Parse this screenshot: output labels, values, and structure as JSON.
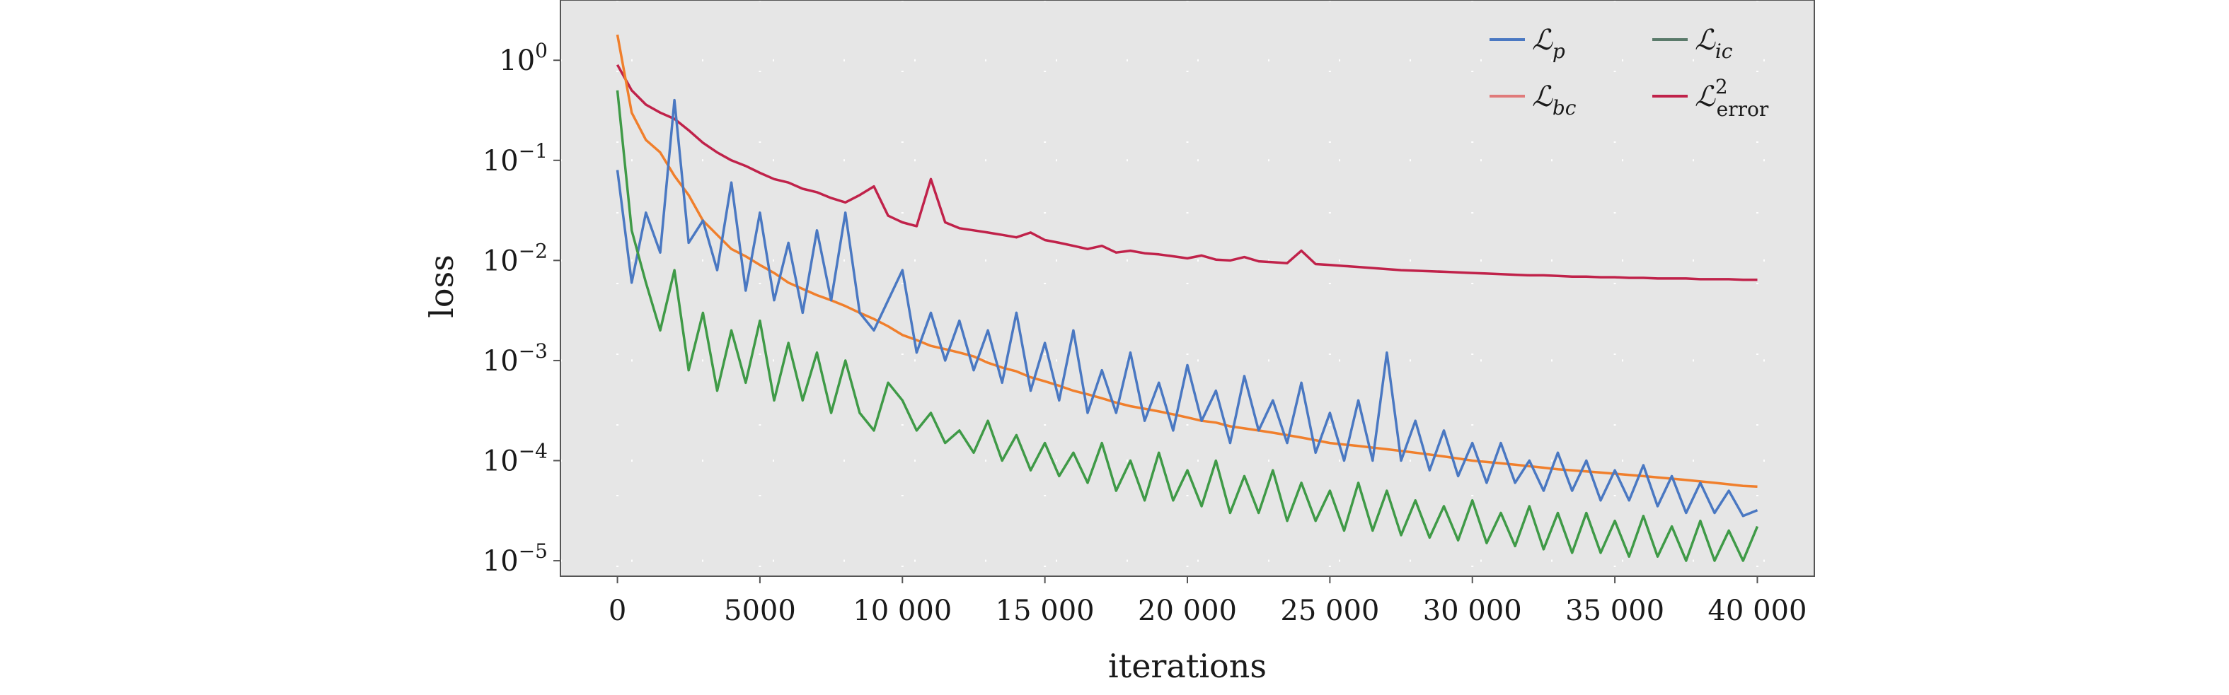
{
  "chart_data": {
    "type": "line",
    "xlabel": "iterations",
    "ylabel": "loss",
    "y_scale": "log",
    "xlim": [
      -2000,
      42000
    ],
    "ylim": [
      7e-06,
      4
    ],
    "x_ticks": [
      0,
      5000,
      10000,
      15000,
      20000,
      25000,
      30000,
      35000,
      40000
    ],
    "x_tick_labels": [
      "0",
      "5000",
      "10 000",
      "15 000",
      "20 000",
      "25 000",
      "30 000",
      "35 000",
      "40 000"
    ],
    "y_ticks": [
      1,
      0.1,
      0.01,
      0.001,
      0.0001,
      1e-05
    ],
    "y_tick_labels": [
      {
        "base": "10",
        "exp": "0"
      },
      {
        "base": "10",
        "exp": "−1"
      },
      {
        "base": "10",
        "exp": "−2"
      },
      {
        "base": "10",
        "exp": "−3"
      },
      {
        "base": "10",
        "exp": "−4"
      },
      {
        "base": "10",
        "exp": "−5"
      }
    ],
    "background": "#e6e6e6",
    "grid": "dotted",
    "legend_position": "top-right",
    "legend": [
      {
        "symbol": "ℒ",
        "sub": "p",
        "sup": "",
        "color": "#4a78c2"
      },
      {
        "symbol": "ℒ",
        "sub": "ic",
        "sup": "",
        "color": "#5a7a6a"
      },
      {
        "symbol": "ℒ",
        "sub": "bc",
        "sup": "",
        "color": "#e07a7a"
      },
      {
        "symbol": "ℒ",
        "sub": "error",
        "sup": "2",
        "color": "#c0224a"
      }
    ],
    "series": [
      {
        "color": "#c0224a",
        "x": [
          0,
          500,
          1000,
          1500,
          2000,
          2500,
          3000,
          3500,
          4000,
          4500,
          5000,
          5500,
          6000,
          6500,
          7000,
          7500,
          8000,
          8500,
          9000,
          9500,
          10000,
          10500,
          11000,
          11500,
          12000,
          12500,
          13000,
          13500,
          14000,
          14500,
          15000,
          15500,
          16000,
          16500,
          17000,
          17500,
          18000,
          18500,
          19000,
          19500,
          20000,
          20500,
          21000,
          21500,
          22000,
          22500,
          23000,
          23500,
          24000,
          24500,
          25000,
          25500,
          26000,
          26500,
          27000,
          27500,
          28000,
          28500,
          29000,
          29500,
          30000,
          30500,
          31000,
          31500,
          32000,
          32500,
          33000,
          33500,
          34000,
          34500,
          35000,
          35500,
          36000,
          36500,
          37000,
          37500,
          38000,
          38500,
          39000,
          39500,
          40000
        ],
        "y": [
          0.9,
          0.5,
          0.36,
          0.3,
          0.26,
          0.2,
          0.15,
          0.12,
          0.1,
          0.088,
          0.075,
          0.065,
          0.06,
          0.052,
          0.048,
          0.042,
          0.038,
          0.045,
          0.055,
          0.028,
          0.024,
          0.022,
          0.065,
          0.024,
          0.021,
          0.02,
          0.019,
          0.018,
          0.017,
          0.019,
          0.016,
          0.015,
          0.014,
          0.013,
          0.014,
          0.012,
          0.0125,
          0.0118,
          0.0115,
          0.011,
          0.0105,
          0.0112,
          0.0102,
          0.01,
          0.0108,
          0.0098,
          0.0096,
          0.0094,
          0.0125,
          0.0092,
          0.009,
          0.0088,
          0.0086,
          0.0084,
          0.0082,
          0.008,
          0.0079,
          0.0078,
          0.0077,
          0.0076,
          0.0075,
          0.0074,
          0.0073,
          0.0072,
          0.0071,
          0.0071,
          0.007,
          0.0069,
          0.0069,
          0.0068,
          0.0068,
          0.0067,
          0.0067,
          0.0066,
          0.0066,
          0.0066,
          0.0065,
          0.0065,
          0.0065,
          0.0064,
          0.0064
        ]
      },
      {
        "color": "#f07f2c",
        "x": [
          0,
          500,
          1000,
          1500,
          2000,
          2500,
          3000,
          3500,
          4000,
          4500,
          5000,
          5500,
          6000,
          6500,
          7000,
          7500,
          8000,
          8500,
          9000,
          9500,
          10000,
          10500,
          11000,
          11500,
          12000,
          12500,
          13000,
          13500,
          14000,
          14500,
          15000,
          15500,
          16000,
          16500,
          17000,
          17500,
          18000,
          18500,
          19000,
          19500,
          20000,
          20500,
          21000,
          21500,
          22000,
          22500,
          23000,
          23500,
          24000,
          24500,
          25000,
          25500,
          26000,
          26500,
          27000,
          27500,
          28000,
          28500,
          29000,
          29500,
          30000,
          30500,
          31000,
          31500,
          32000,
          32500,
          33000,
          33500,
          34000,
          34500,
          35000,
          35500,
          36000,
          36500,
          37000,
          37500,
          38000,
          38500,
          39000,
          39500,
          40000
        ],
        "y": [
          1.8,
          0.3,
          0.16,
          0.12,
          0.07,
          0.045,
          0.025,
          0.018,
          0.013,
          0.011,
          0.009,
          0.0075,
          0.006,
          0.0052,
          0.0045,
          0.004,
          0.0035,
          0.003,
          0.0026,
          0.0022,
          0.0018,
          0.0016,
          0.0014,
          0.0013,
          0.0012,
          0.0011,
          0.00095,
          0.00085,
          0.00078,
          0.00068,
          0.00062,
          0.00056,
          0.0005,
          0.00046,
          0.00042,
          0.00038,
          0.00035,
          0.00033,
          0.00031,
          0.00029,
          0.00027,
          0.00025,
          0.00024,
          0.00022,
          0.00021,
          0.0002,
          0.00019,
          0.00018,
          0.00017,
          0.00016,
          0.00015,
          0.000145,
          0.00014,
          0.000135,
          0.00013,
          0.000125,
          0.00012,
          0.000115,
          0.00011,
          0.000105,
          0.0001,
          9.7e-05,
          9.4e-05,
          9.1e-05,
          8.8e-05,
          8.5e-05,
          8.2e-05,
          8e-05,
          7.8e-05,
          7.6e-05,
          7.4e-05,
          7.2e-05,
          7e-05,
          6.8e-05,
          6.6e-05,
          6.4e-05,
          6.2e-05,
          6e-05,
          5.8e-05,
          5.6e-05,
          5.5e-05
        ]
      },
      {
        "color": "#4a78c2",
        "x": [
          0,
          500,
          1000,
          1500,
          2000,
          2500,
          3000,
          3500,
          4000,
          4500,
          5000,
          5500,
          6000,
          6500,
          7000,
          7500,
          8000,
          8500,
          9000,
          9500,
          10000,
          10500,
          11000,
          11500,
          12000,
          12500,
          13000,
          13500,
          14000,
          14500,
          15000,
          15500,
          16000,
          16500,
          17000,
          17500,
          18000,
          18500,
          19000,
          19500,
          20000,
          20500,
          21000,
          21500,
          22000,
          22500,
          23000,
          23500,
          24000,
          24500,
          25000,
          25500,
          26000,
          26500,
          27000,
          27500,
          28000,
          28500,
          29000,
          29500,
          30000,
          30500,
          31000,
          31500,
          32000,
          32500,
          33000,
          33500,
          34000,
          34500,
          35000,
          35500,
          36000,
          36500,
          37000,
          37500,
          38000,
          38500,
          39000,
          39500,
          40000
        ],
        "y": [
          0.08,
          0.006,
          0.03,
          0.012,
          0.4,
          0.015,
          0.025,
          0.008,
          0.06,
          0.005,
          0.03,
          0.004,
          0.015,
          0.003,
          0.02,
          0.004,
          0.03,
          0.003,
          0.002,
          0.004,
          0.008,
          0.0012,
          0.003,
          0.001,
          0.0025,
          0.0008,
          0.002,
          0.0006,
          0.003,
          0.0005,
          0.0015,
          0.0004,
          0.002,
          0.0003,
          0.0008,
          0.0003,
          0.0012,
          0.00025,
          0.0006,
          0.0002,
          0.0009,
          0.00025,
          0.0005,
          0.00015,
          0.0007,
          0.0002,
          0.0004,
          0.00015,
          0.0006,
          0.00012,
          0.0003,
          0.0001,
          0.0004,
          0.0001,
          0.0012,
          0.0001,
          0.00025,
          8e-05,
          0.0002,
          7e-05,
          0.00015,
          6e-05,
          0.00015,
          6e-05,
          0.0001,
          5e-05,
          0.00012,
          5e-05,
          0.0001,
          4e-05,
          8e-05,
          4e-05,
          9e-05,
          3.5e-05,
          7e-05,
          3e-05,
          6e-05,
          3e-05,
          5e-05,
          2.8e-05,
          3.2e-05
        ]
      },
      {
        "color": "#3f9a47",
        "x": [
          0,
          500,
          1000,
          1500,
          2000,
          2500,
          3000,
          3500,
          4000,
          4500,
          5000,
          5500,
          6000,
          6500,
          7000,
          7500,
          8000,
          8500,
          9000,
          9500,
          10000,
          10500,
          11000,
          11500,
          12000,
          12500,
          13000,
          13500,
          14000,
          14500,
          15000,
          15500,
          16000,
          16500,
          17000,
          17500,
          18000,
          18500,
          19000,
          19500,
          20000,
          20500,
          21000,
          21500,
          22000,
          22500,
          23000,
          23500,
          24000,
          24500,
          25000,
          25500,
          26000,
          26500,
          27000,
          27500,
          28000,
          28500,
          29000,
          29500,
          30000,
          30500,
          31000,
          31500,
          32000,
          32500,
          33000,
          33500,
          34000,
          34500,
          35000,
          35500,
          36000,
          36500,
          37000,
          37500,
          38000,
          38500,
          39000,
          39500,
          40000
        ],
        "y": [
          0.5,
          0.02,
          0.006,
          0.002,
          0.008,
          0.0008,
          0.003,
          0.0005,
          0.002,
          0.0006,
          0.0025,
          0.0004,
          0.0015,
          0.0004,
          0.0012,
          0.0003,
          0.001,
          0.0003,
          0.0002,
          0.0006,
          0.0004,
          0.0002,
          0.0003,
          0.00015,
          0.0002,
          0.00012,
          0.00025,
          0.0001,
          0.00018,
          8e-05,
          0.00015,
          7e-05,
          0.00012,
          6e-05,
          0.00015,
          5e-05,
          0.0001,
          4e-05,
          0.00012,
          4e-05,
          8e-05,
          3.5e-05,
          0.0001,
          3e-05,
          7e-05,
          3e-05,
          8e-05,
          2.5e-05,
          6e-05,
          2.5e-05,
          5e-05,
          2e-05,
          6e-05,
          2e-05,
          5e-05,
          1.8e-05,
          4e-05,
          1.7e-05,
          3.5e-05,
          1.6e-05,
          4e-05,
          1.5e-05,
          3e-05,
          1.4e-05,
          3.5e-05,
          1.3e-05,
          3e-05,
          1.2e-05,
          3e-05,
          1.2e-05,
          2.5e-05,
          1.1e-05,
          2.8e-05,
          1.1e-05,
          2.2e-05,
          1e-05,
          2.5e-05,
          1e-05,
          2e-05,
          1e-05,
          2.2e-05
        ]
      }
    ]
  }
}
